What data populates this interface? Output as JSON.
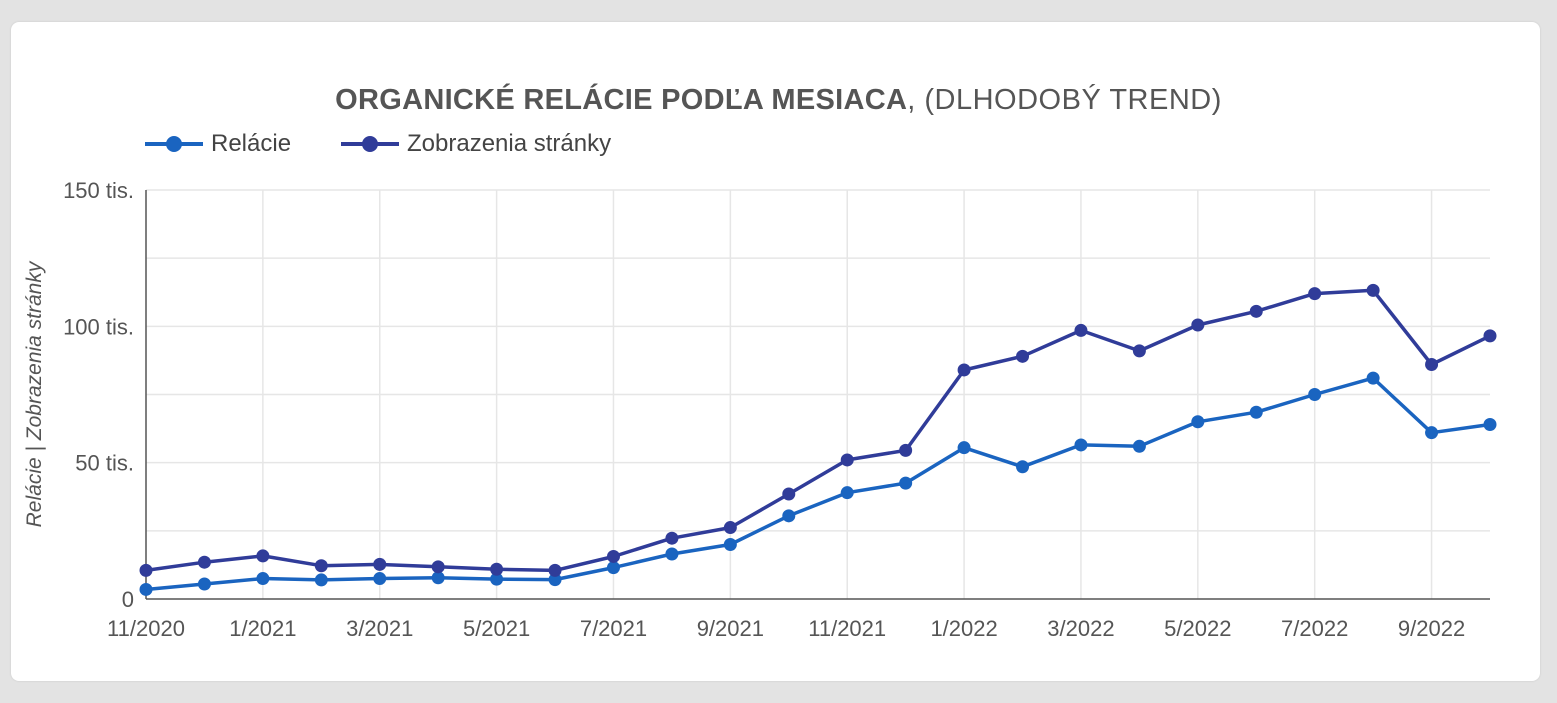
{
  "chart_data": {
    "type": "line",
    "title_bold": "ORGANICKÉ RELÁCIE PODĽA MESIACA",
    "title_rest": ", (DLHODOBÝ TREND)",
    "ylabel": "Relácie | Zobrazenia stránky",
    "xlabel": "",
    "x": [
      "11/2020",
      "12/2020",
      "1/2021",
      "2/2021",
      "3/2021",
      "4/2021",
      "5/2021",
      "6/2021",
      "7/2021",
      "8/2021",
      "9/2021",
      "10/2021",
      "11/2021",
      "12/2021",
      "1/2022",
      "2/2022",
      "3/2022",
      "4/2022",
      "5/2022",
      "6/2022",
      "7/2022",
      "8/2022",
      "9/2022",
      "10/2022"
    ],
    "x_tick_labels": [
      "11/2020",
      "1/2021",
      "3/2021",
      "5/2021",
      "7/2021",
      "9/2021",
      "11/2021",
      "1/2022",
      "3/2022",
      "5/2022",
      "7/2022",
      "9/2022"
    ],
    "y_tick_values": [
      0,
      50000,
      100000,
      150000
    ],
    "y_tick_labels": [
      "0",
      "50 tis.",
      "100 tis.",
      "150 tis."
    ],
    "ylim": [
      0,
      150000
    ],
    "grid": true,
    "legend_position": "top-left",
    "series": [
      {
        "name": "Relácie",
        "color": "#1a64c0",
        "values": [
          3500,
          5500,
          7500,
          7000,
          7500,
          7800,
          7300,
          7100,
          11500,
          16500,
          20000,
          30500,
          39000,
          42500,
          55500,
          48500,
          56500,
          56000,
          65000,
          68500,
          75000,
          81000,
          61000,
          64000
        ]
      },
      {
        "name": "Zobrazenia stránky",
        "color": "#303c99",
        "values": [
          10500,
          13500,
          15800,
          12200,
          12700,
          11800,
          10900,
          10500,
          15600,
          22300,
          26200,
          38500,
          51000,
          54500,
          84000,
          89000,
          98500,
          91000,
          100500,
          105500,
          112000,
          113200,
          86000,
          96500
        ]
      }
    ]
  }
}
